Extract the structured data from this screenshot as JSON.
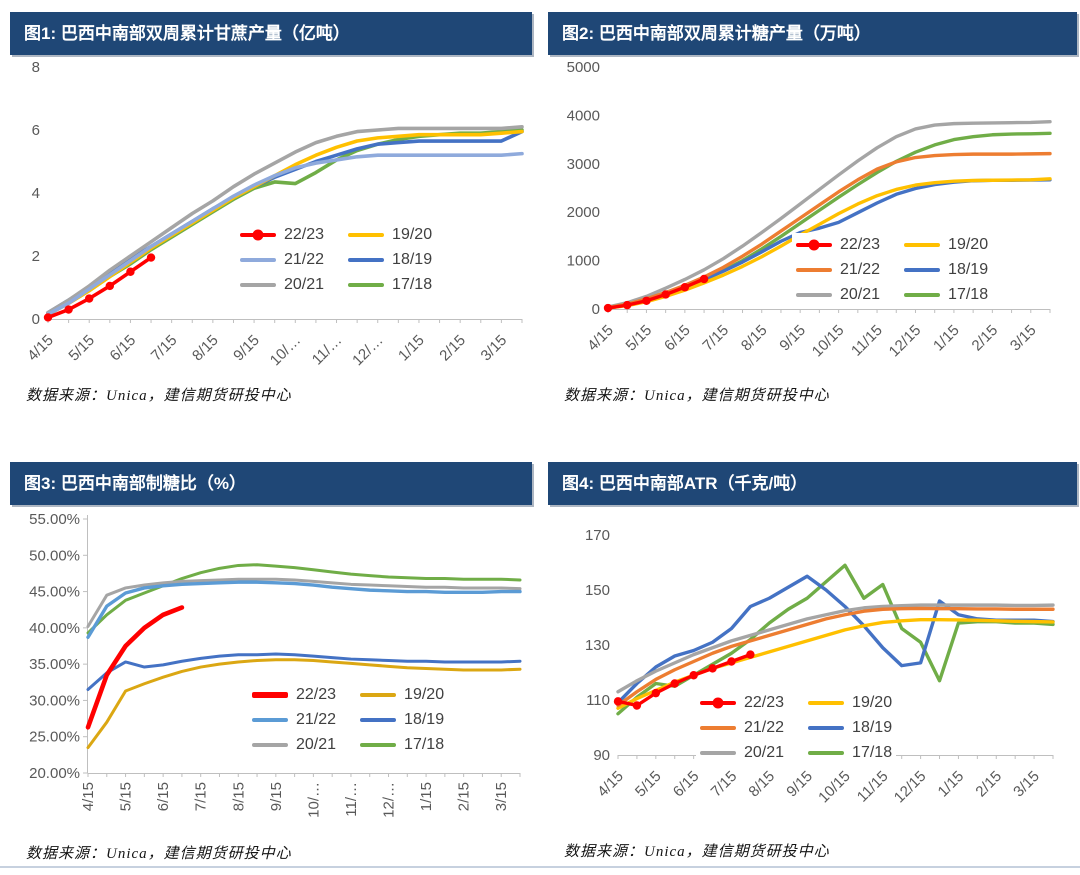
{
  "footer": {
    "rule_color": "#c7d1df"
  },
  "theme": {
    "header_bg": "#1f4776",
    "header_text": "#ffffff",
    "axis_text": "#595959",
    "axis_line": "#bfbfbf",
    "legend_text": "#404040"
  },
  "chart_data": [
    {
      "type": "line",
      "title": "图1: 巴西中南部双周累计甘蔗产量（亿吨）",
      "source": "数据来源：Unica，建信期货研投中心",
      "x_labels": [
        "4/15",
        "5/15",
        "6/15",
        "7/15",
        "8/15",
        "9/15",
        "10/…",
        "11/…",
        "12/…",
        "1/15",
        "2/15",
        "3/15"
      ],
      "n_points": 24,
      "ylim": [
        0,
        8
      ],
      "ytick_values": [
        0,
        2,
        4,
        6,
        8
      ],
      "ytick_labels": [
        "0",
        "2",
        "4",
        "6",
        "8"
      ],
      "grid": false,
      "legend_position": "inside-right-lower",
      "series": [
        {
          "name": "22/23",
          "color": "#FF0000",
          "marker": true,
          "width": 3.6,
          "values": [
            0.05,
            0.3,
            0.65,
            1.05,
            1.5,
            1.95
          ]
        },
        {
          "name": "21/22",
          "color": "#8FAADC",
          "width": 3.6,
          "values": [
            0.15,
            0.5,
            0.95,
            1.4,
            1.85,
            2.3,
            2.7,
            3.1,
            3.5,
            3.9,
            4.25,
            4.55,
            4.8,
            4.95,
            5.05,
            5.15,
            5.2,
            5.2,
            5.2,
            5.2,
            5.2,
            5.2,
            5.2,
            5.25
          ]
        },
        {
          "name": "20/21",
          "color": "#A5A5A5",
          "width": 3.6,
          "values": [
            0.2,
            0.6,
            1.05,
            1.55,
            2.0,
            2.45,
            2.9,
            3.35,
            3.75,
            4.2,
            4.6,
            4.95,
            5.3,
            5.6,
            5.8,
            5.95,
            6.0,
            6.05,
            6.05,
            6.05,
            6.05,
            6.05,
            6.05,
            6.1
          ]
        },
        {
          "name": "19/20",
          "color": "#FFC000",
          "width": 3.6,
          "values": [
            0.15,
            0.5,
            0.9,
            1.35,
            1.8,
            2.25,
            2.65,
            3.05,
            3.45,
            3.85,
            4.2,
            4.55,
            4.9,
            5.2,
            5.45,
            5.65,
            5.75,
            5.8,
            5.85,
            5.85,
            5.85,
            5.85,
            5.9,
            5.95
          ]
        },
        {
          "name": "18/19",
          "color": "#4472C4",
          "width": 3.6,
          "values": [
            0.2,
            0.6,
            1.0,
            1.45,
            1.9,
            2.3,
            2.7,
            3.1,
            3.5,
            3.85,
            4.2,
            4.5,
            4.75,
            5.0,
            5.2,
            5.4,
            5.55,
            5.6,
            5.65,
            5.65,
            5.65,
            5.65,
            5.65,
            5.95
          ]
        },
        {
          "name": "17/18",
          "color": "#70AD47",
          "width": 3.6,
          "values": [
            0.15,
            0.5,
            0.9,
            1.35,
            1.75,
            2.2,
            2.6,
            3.0,
            3.4,
            3.8,
            4.15,
            4.35,
            4.3,
            4.65,
            5.05,
            5.35,
            5.55,
            5.7,
            5.8,
            5.85,
            5.9,
            5.9,
            5.95,
            6.0
          ]
        }
      ]
    },
    {
      "type": "line",
      "title": "图2: 巴西中南部双周累计糖产量（万吨）",
      "source": "数据来源：Unica，建信期货研投中心",
      "x_labels": [
        "4/15",
        "5/15",
        "6/15",
        "7/15",
        "8/15",
        "9/15",
        "10/15",
        "11/15",
        "12/15",
        "1/15",
        "2/15",
        "3/15"
      ],
      "n_points": 24,
      "ylim": [
        0,
        5000
      ],
      "ytick_values": [
        0,
        1000,
        2000,
        3000,
        4000,
        5000
      ],
      "ytick_labels": [
        "0",
        "1000",
        "2000",
        "3000",
        "4000",
        "5000"
      ],
      "grid": false,
      "legend_position": "inside-right-lower",
      "series": [
        {
          "name": "22/23",
          "color": "#FF0000",
          "marker": true,
          "width": 3.4,
          "values": [
            20,
            80,
            170,
            300,
            450,
            620
          ]
        },
        {
          "name": "21/22",
          "color": "#ED7D31",
          "width": 3.4,
          "values": [
            30,
            100,
            210,
            340,
            490,
            660,
            860,
            1090,
            1340,
            1610,
            1880,
            2150,
            2420,
            2670,
            2890,
            3040,
            3130,
            3170,
            3190,
            3200,
            3200,
            3200,
            3205,
            3210
          ]
        },
        {
          "name": "20/21",
          "color": "#A5A5A5",
          "width": 3.4,
          "values": [
            40,
            130,
            260,
            430,
            610,
            810,
            1040,
            1300,
            1580,
            1870,
            2170,
            2470,
            2770,
            3060,
            3330,
            3560,
            3720,
            3800,
            3830,
            3840,
            3845,
            3850,
            3855,
            3870
          ]
        },
        {
          "name": "19/20",
          "color": "#FFC000",
          "width": 3.4,
          "values": [
            20,
            70,
            150,
            260,
            390,
            540,
            700,
            880,
            1080,
            1300,
            1530,
            1750,
            1970,
            2170,
            2340,
            2470,
            2560,
            2610,
            2640,
            2655,
            2660,
            2665,
            2670,
            2690
          ]
        },
        {
          "name": "18/19",
          "color": "#4472C4",
          "width": 3.4,
          "values": [
            30,
            90,
            180,
            300,
            450,
            610,
            780,
            970,
            1180,
            1400,
            1580,
            1670,
            1790,
            1990,
            2190,
            2370,
            2490,
            2570,
            2620,
            2650,
            2660,
            2660,
            2665,
            2670
          ]
        },
        {
          "name": "17/18",
          "color": "#70AD47",
          "width": 3.4,
          "values": [
            20,
            80,
            170,
            290,
            440,
            600,
            790,
            1000,
            1240,
            1500,
            1770,
            2040,
            2310,
            2570,
            2820,
            3050,
            3240,
            3390,
            3500,
            3560,
            3600,
            3615,
            3620,
            3630
          ]
        }
      ]
    },
    {
      "type": "line",
      "title": "图3: 巴西中南部制糖比（%）",
      "source": "数据来源：Unica，建信期货研投中心",
      "x_labels": [
        "4/15",
        "5/15",
        "6/15",
        "7/15",
        "8/15",
        "9/15",
        "10/…",
        "11/…",
        "12/…",
        "1/15",
        "2/15",
        "3/15"
      ],
      "n_points": 24,
      "ylim": [
        20,
        55
      ],
      "ytick_values": [
        20,
        25,
        30,
        35,
        40,
        45,
        50,
        55
      ],
      "ytick_labels": [
        "20.00%",
        "25.00%",
        "30.00%",
        "35.00%",
        "40.00%",
        "45.00%",
        "50.00%",
        "55.00%"
      ],
      "grid": false,
      "legend_position": "inside-right-lower",
      "series": [
        {
          "name": "22/23",
          "color": "#FF0000",
          "marker": false,
          "width": 4.6,
          "values": [
            26.3,
            33.5,
            37.5,
            40.0,
            41.8,
            42.8
          ]
        },
        {
          "name": "21/22",
          "color": "#5B9BD5",
          "width": 3.4,
          "values": [
            38.7,
            43.0,
            44.8,
            45.5,
            45.8,
            46.0,
            46.1,
            46.2,
            46.3,
            46.3,
            46.2,
            46.1,
            45.9,
            45.6,
            45.4,
            45.2,
            45.1,
            45.0,
            45.0,
            44.9,
            44.9,
            44.9,
            45.0,
            45.0
          ]
        },
        {
          "name": "20/21",
          "color": "#A5A5A5",
          "width": 3.0,
          "values": [
            40.2,
            44.5,
            45.5,
            45.9,
            46.2,
            46.4,
            46.5,
            46.6,
            46.7,
            46.7,
            46.7,
            46.6,
            46.4,
            46.2,
            46.0,
            45.9,
            45.8,
            45.7,
            45.6,
            45.6,
            45.5,
            45.5,
            45.5,
            45.4
          ]
        },
        {
          "name": "19/20",
          "color": "#DBA713",
          "width": 3.0,
          "values": [
            23.5,
            27.0,
            31.3,
            32.3,
            33.2,
            34.0,
            34.6,
            35.0,
            35.3,
            35.5,
            35.6,
            35.6,
            35.5,
            35.3,
            35.1,
            34.9,
            34.7,
            34.5,
            34.4,
            34.3,
            34.2,
            34.2,
            34.2,
            34.3
          ]
        },
        {
          "name": "18/19",
          "color": "#4472C4",
          "width": 3.0,
          "values": [
            31.5,
            33.8,
            35.3,
            34.6,
            34.9,
            35.4,
            35.8,
            36.1,
            36.3,
            36.3,
            36.4,
            36.3,
            36.1,
            35.9,
            35.7,
            35.6,
            35.5,
            35.4,
            35.4,
            35.3,
            35.3,
            35.3,
            35.3,
            35.4
          ]
        },
        {
          "name": "17/18",
          "color": "#70AD47",
          "width": 3.0,
          "values": [
            39.3,
            41.8,
            43.8,
            44.8,
            45.8,
            46.8,
            47.6,
            48.2,
            48.6,
            48.7,
            48.5,
            48.3,
            48.0,
            47.7,
            47.4,
            47.2,
            47.0,
            46.9,
            46.8,
            46.8,
            46.7,
            46.7,
            46.7,
            46.6
          ]
        }
      ]
    },
    {
      "type": "line",
      "title": "图4: 巴西中南部ATR（千克/吨）",
      "source": "数据来源：Unica，建信期货研投中心",
      "x_labels": [
        "4/15",
        "5/15",
        "6/15",
        "7/15",
        "8/15",
        "9/15",
        "10/15",
        "11/15",
        "12/15",
        "1/15",
        "2/15",
        "3/15"
      ],
      "n_points": 24,
      "ylim": [
        90,
        170
      ],
      "ytick_values": [
        90,
        110,
        130,
        150,
        170
      ],
      "ytick_labels": [
        "90",
        "110",
        "130",
        "150",
        "170"
      ],
      "grid": false,
      "legend_position": "inside-center-lower",
      "series": [
        {
          "name": "22/23",
          "color": "#FF0000",
          "marker": true,
          "width": 3.4,
          "values": [
            109.5,
            108,
            112.5,
            116,
            119,
            121.5,
            124,
            126.5
          ]
        },
        {
          "name": "21/22",
          "color": "#ED7D31",
          "width": 3.4,
          "values": [
            108,
            113,
            117.5,
            121,
            124,
            127,
            129.5,
            131.5,
            133.5,
            135.5,
            137.5,
            139.5,
            141,
            142.3,
            143,
            143.2,
            143.3,
            143.2,
            143.2,
            143.1,
            143.1,
            143,
            143,
            143
          ]
        },
        {
          "name": "20/21",
          "color": "#A5A5A5",
          "width": 3.4,
          "values": [
            113,
            117,
            120.5,
            123.5,
            126.5,
            129,
            131.5,
            133.5,
            135.5,
            137.5,
            139.5,
            141,
            142.5,
            143.5,
            144,
            144.3,
            144.5,
            144.5,
            144.5,
            144.5,
            144.5,
            144.4,
            144.4,
            144.5
          ]
        },
        {
          "name": "19/20",
          "color": "#FFC000",
          "width": 3.4,
          "values": [
            107,
            110.5,
            113.5,
            116.5,
            119,
            121.5,
            123.5,
            125.5,
            127.5,
            129.5,
            131.5,
            133.5,
            135.5,
            137,
            138.2,
            138.8,
            139.2,
            139.2,
            139.1,
            139,
            138.8,
            138.6,
            138.5,
            138.4
          ]
        },
        {
          "name": "18/19",
          "color": "#4472C4",
          "width": 3.4,
          "values": [
            109,
            116,
            122,
            126,
            128,
            131,
            136,
            144,
            147,
            151,
            155,
            150,
            144,
            137,
            129,
            122.5,
            123.5,
            146,
            141,
            139.5,
            139,
            139,
            139,
            138.5
          ]
        },
        {
          "name": "17/18",
          "color": "#70AD47",
          "width": 3.4,
          "values": [
            105,
            111,
            116,
            115,
            119,
            123,
            127,
            132,
            138,
            143,
            147,
            153,
            159,
            147,
            152,
            136,
            131,
            117,
            138,
            138.5,
            138.5,
            138,
            138,
            137.5
          ]
        }
      ]
    }
  ]
}
